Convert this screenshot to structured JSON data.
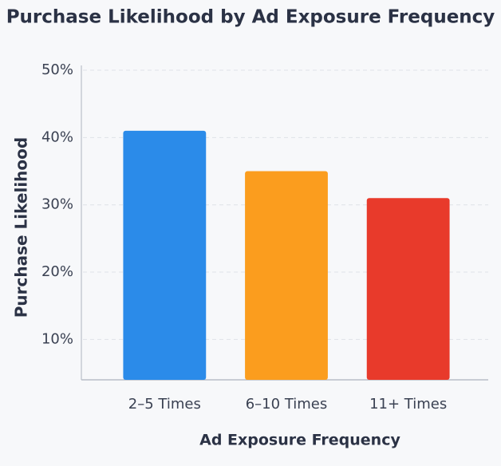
{
  "chart_data": {
    "type": "bar",
    "title": "Purchase Likelihood by Ad Exposure Frequency",
    "x_label": "Ad Exposure Frequency",
    "y_label": "Purchase Likelihood",
    "categories": [
      "2–5 Times",
      "6–10 Times",
      "11+ Times"
    ],
    "values": [
      41,
      35,
      31
    ],
    "colors": [
      "#2b8be9",
      "#fb9d1e",
      "#e83a2b"
    ],
    "ylim": [
      4,
      50
    ],
    "yticks": [
      {
        "value": 10,
        "label": "10%"
      },
      {
        "value": 20,
        "label": "20%"
      },
      {
        "value": 30,
        "label": "30%"
      },
      {
        "value": 40,
        "label": "40%"
      },
      {
        "value": 50,
        "label": "50%"
      }
    ],
    "grid": true
  }
}
